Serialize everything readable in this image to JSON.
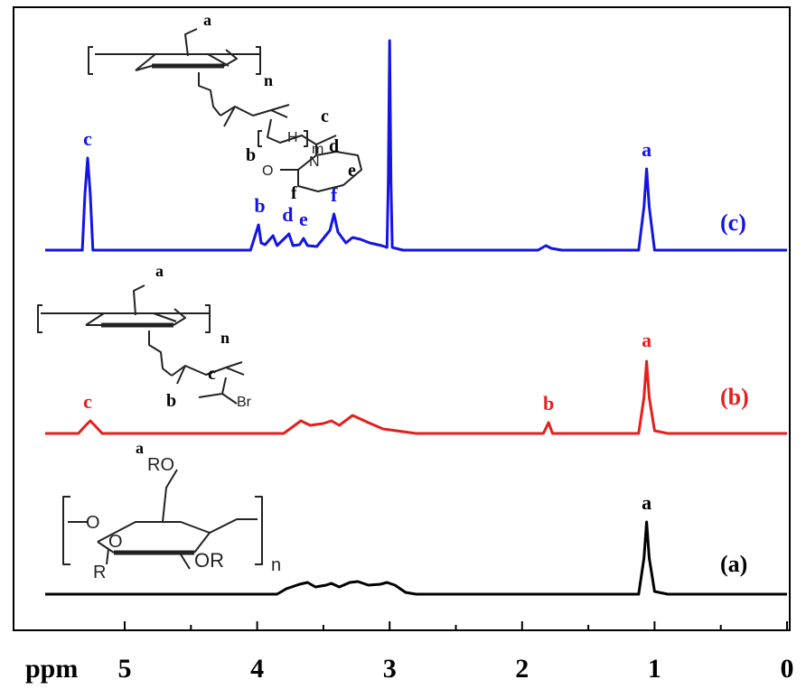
{
  "chart_data": {
    "type": "line",
    "xlabel": "ppm",
    "x_reversed": true,
    "xlim": [
      5.55,
      0.0
    ],
    "x_ticks": [
      5,
      4,
      3,
      2,
      1,
      0
    ],
    "series": [
      {
        "label": "(c)",
        "color": "#1414e6",
        "points": [
          [
            5.6,
            0
          ],
          [
            5.32,
            0
          ],
          [
            5.3,
            62
          ],
          [
            5.28,
            102
          ],
          [
            5.26,
            62
          ],
          [
            5.24,
            0
          ],
          [
            4.05,
            0
          ],
          [
            3.99,
            28
          ],
          [
            3.97,
            8
          ],
          [
            3.94,
            6
          ],
          [
            3.88,
            16
          ],
          [
            3.85,
            5
          ],
          [
            3.78,
            15
          ],
          [
            3.76,
            18
          ],
          [
            3.73,
            5
          ],
          [
            3.68,
            6
          ],
          [
            3.65,
            13
          ],
          [
            3.62,
            5
          ],
          [
            3.55,
            4
          ],
          [
            3.45,
            22
          ],
          [
            3.42,
            40
          ],
          [
            3.39,
            20
          ],
          [
            3.33,
            8
          ],
          [
            3.28,
            14
          ],
          [
            3.22,
            12
          ],
          [
            3.15,
            8
          ],
          [
            3.06,
            5
          ],
          [
            3.02,
            3
          ],
          [
            3.01,
            75
          ],
          [
            3.0,
            232
          ],
          [
            2.99,
            75
          ],
          [
            2.98,
            3
          ],
          [
            2.9,
            0
          ],
          [
            1.88,
            0
          ],
          [
            1.82,
            5
          ],
          [
            1.78,
            2
          ],
          [
            1.7,
            0
          ],
          [
            1.12,
            0
          ],
          [
            1.08,
            48
          ],
          [
            1.06,
            90
          ],
          [
            1.04,
            48
          ],
          [
            1.0,
            0
          ],
          [
            0.0,
            0
          ]
        ]
      },
      {
        "label": "(b)",
        "color": "#e61e1e",
        "points": [
          [
            5.6,
            0
          ],
          [
            5.35,
            0
          ],
          [
            5.3,
            8
          ],
          [
            5.26,
            14
          ],
          [
            5.22,
            8
          ],
          [
            5.17,
            0
          ],
          [
            3.8,
            0
          ],
          [
            3.67,
            14
          ],
          [
            3.6,
            9
          ],
          [
            3.5,
            11
          ],
          [
            3.44,
            14
          ],
          [
            3.38,
            9
          ],
          [
            3.28,
            20
          ],
          [
            3.16,
            12
          ],
          [
            3.05,
            5
          ],
          [
            2.9,
            2
          ],
          [
            2.8,
            0
          ],
          [
            1.84,
            0
          ],
          [
            1.8,
            12
          ],
          [
            1.77,
            0
          ],
          [
            1.12,
            0
          ],
          [
            1.08,
            40
          ],
          [
            1.06,
            80
          ],
          [
            1.04,
            40
          ],
          [
            1.0,
            3
          ],
          [
            0.9,
            0
          ],
          [
            0.0,
            0
          ]
        ]
      },
      {
        "label": "(a)",
        "color": "#000000",
        "points": [
          [
            5.6,
            0
          ],
          [
            3.85,
            0
          ],
          [
            3.78,
            6
          ],
          [
            3.68,
            11
          ],
          [
            3.62,
            13
          ],
          [
            3.56,
            8
          ],
          [
            3.48,
            10
          ],
          [
            3.44,
            12
          ],
          [
            3.38,
            8
          ],
          [
            3.3,
            13
          ],
          [
            3.24,
            14
          ],
          [
            3.16,
            10
          ],
          [
            3.07,
            11
          ],
          [
            3.02,
            13
          ],
          [
            2.96,
            10
          ],
          [
            2.88,
            2
          ],
          [
            2.8,
            0
          ],
          [
            1.12,
            0
          ],
          [
            1.08,
            40
          ],
          [
            1.06,
            80
          ],
          [
            1.04,
            40
          ],
          [
            1.0,
            3
          ],
          [
            0.9,
            0
          ],
          [
            0.0,
            0
          ]
        ]
      }
    ],
    "peak_labels": [
      {
        "text": "c",
        "series": "(c)",
        "ppm": 5.28
      },
      {
        "text": "b",
        "series": "(c)",
        "ppm": 3.98
      },
      {
        "text": "d",
        "series": "(c)",
        "ppm": 3.77
      },
      {
        "text": "e",
        "series": "(c)",
        "ppm": 3.65
      },
      {
        "text": "f",
        "series": "(c)",
        "ppm": 3.42
      },
      {
        "text": "a",
        "series": "(c)",
        "ppm": 1.06
      },
      {
        "text": "c",
        "series": "(b)",
        "ppm": 5.28
      },
      {
        "text": "b",
        "series": "(b)",
        "ppm": 1.8
      },
      {
        "text": "a",
        "series": "(b)",
        "ppm": 1.06
      },
      {
        "text": "a",
        "series": "(a)",
        "ppm": 1.06
      }
    ],
    "structures": {
      "c": {
        "glucose_labels": [
          "a",
          "n"
        ],
        "chain_labels": [
          "c",
          "b",
          "H",
          "m",
          "d",
          "N",
          "O",
          "e",
          "f"
        ]
      },
      "b": {
        "glucose_labels": [
          "a",
          "n"
        ],
        "chain_labels": [
          "c",
          "b",
          "Br"
        ]
      },
      "a": {
        "glucose_labels": [
          "a",
          "RO",
          "R",
          "OR",
          "n"
        ]
      }
    }
  }
}
